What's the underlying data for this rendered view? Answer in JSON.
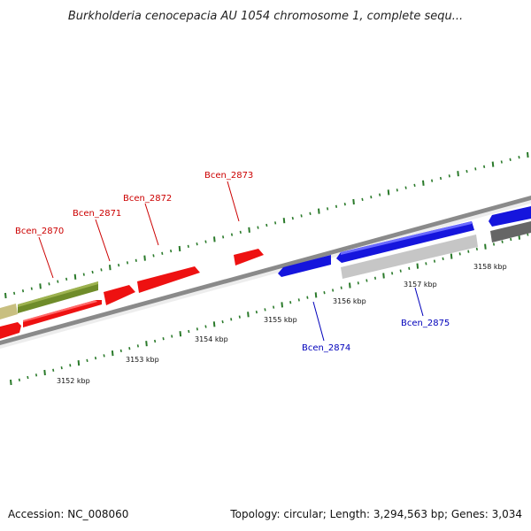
{
  "title": "Burkholderia cenocepacia AU 1054 chromosome 1, complete sequ...",
  "footer": {
    "accession": "Accession: NC_008060",
    "stats": "Topology: circular; Length: 3,294,563 bp; Genes: 3,034"
  },
  "colors": {
    "backbone": "#8a8a8a",
    "tick": "#2a7a2a",
    "forward_gene": "#ee1111",
    "reverse_gene": "#1515dd",
    "olive_feature": "#6f8c2a",
    "tan_feature": "#c8bf80",
    "light_gray_feature": "#c6c6c6",
    "dark_gray_feature": "#666666",
    "forward_label": "#cc0000",
    "reverse_label": "#0000bb"
  },
  "scale": {
    "tick_labels": [
      "3152 kbp",
      "3153 kbp",
      "3154 kbp",
      "3155 kbp",
      "3156 kbp",
      "3157 kbp",
      "3158 kbp"
    ]
  },
  "gene_labels": {
    "forward": [
      "Bcen_2870",
      "Bcen_2871",
      "Bcen_2872",
      "Bcen_2873"
    ],
    "reverse": [
      "Bcen_2874",
      "Bcen_2875"
    ]
  }
}
